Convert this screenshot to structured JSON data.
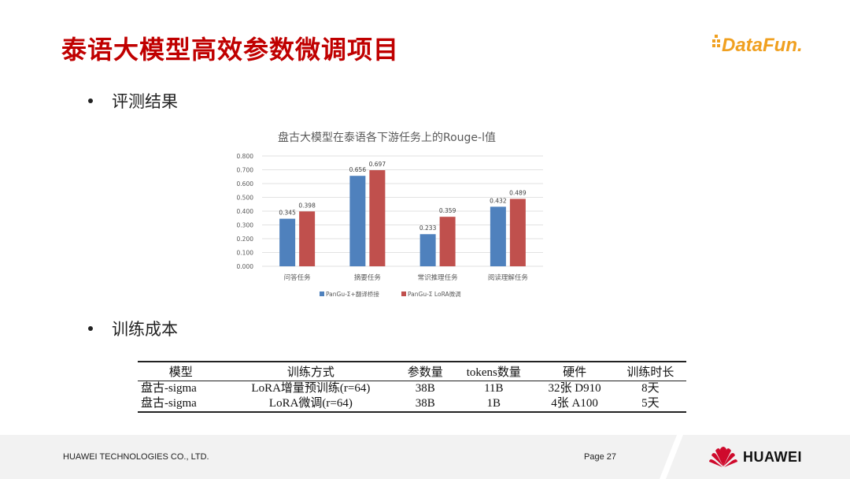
{
  "title": "泰语大模型高效参数微调项目",
  "logo_text": "DataFun.",
  "bullets": {
    "eval": "评测结果",
    "cost": "训练成本"
  },
  "chart_data": {
    "type": "bar",
    "title": "盘古大模型在泰语各下游任务上的Rouge-l值",
    "categories": [
      "问答任务",
      "摘要任务",
      "常识推理任务",
      "阅读理解任务"
    ],
    "series": [
      {
        "name": "PanGu-Σ+翻译桥接",
        "values": [
          0.345,
          0.656,
          0.233,
          0.432
        ],
        "color": "#4f81bd"
      },
      {
        "name": "PanGu-Σ LoRA微调",
        "values": [
          0.398,
          0.697,
          0.359,
          0.489
        ],
        "color": "#c0504d"
      }
    ],
    "value_labels": [
      [
        "0.345",
        "0.656",
        "0.233",
        "0.432"
      ],
      [
        "0.398",
        "0.697",
        "0.359",
        "0.489"
      ]
    ],
    "ylim": [
      0,
      0.8
    ],
    "yticks": [
      "0.000",
      "0.100",
      "0.200",
      "0.300",
      "0.400",
      "0.500",
      "0.600",
      "0.700",
      "0.800"
    ],
    "legend_position": "bottom",
    "grid": true
  },
  "table": {
    "headers": [
      "模型",
      "训练方式",
      "参数量",
      "tokens数量",
      "硬件",
      "训练时长"
    ],
    "rows": [
      [
        "盘古-sigma",
        "LoRA增量预训练(r=64)",
        "38B",
        "11B",
        "32张 D910",
        "8天"
      ],
      [
        "盘古-sigma",
        "LoRA微调(r=64)",
        "38B",
        "1B",
        "4张 A100",
        "5天"
      ]
    ]
  },
  "footer": {
    "company": "HUAWEI TECHNOLOGIES CO., LTD.",
    "page": "Page 27",
    "brand": "HUAWEI"
  }
}
